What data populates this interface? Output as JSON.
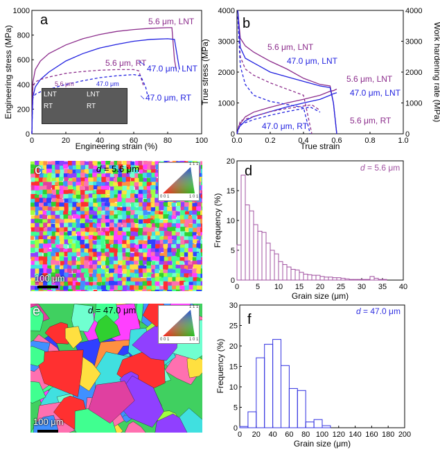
{
  "panels": {
    "a": {
      "letter": "a",
      "xlabel": "Engineering strain (%)",
      "ylabel": "Engineering stress (MPa)",
      "xlim": [
        0,
        100
      ],
      "ylim": [
        0,
        1000
      ],
      "xticks": [
        "0",
        "20",
        "40",
        "60",
        "80",
        "100"
      ],
      "yticks": [
        "0",
        "200",
        "400",
        "600",
        "800",
        "1000"
      ],
      "labels": [
        "5.6 μm, LNT",
        "5.6 μm, RT",
        "47.0 μm, LNT",
        "47.0 μm, RT"
      ],
      "inset": {
        "left": "5.6 μm",
        "right": "47.0 μm",
        "lnt": "LNT",
        "rt": "RT"
      }
    },
    "b": {
      "letter": "b",
      "xlabel": "True strain",
      "ylabel": "True stress (MPa)",
      "ylabel_right": "Work hardening rate (MPa)",
      "xlim": [
        0,
        1.0
      ],
      "ylim": [
        0,
        4000
      ],
      "xticks": [
        "0.0",
        "0.2",
        "0.4",
        "0.6",
        "0.8",
        "1.0"
      ],
      "yticks": [
        "0",
        "1000",
        "2000",
        "3000",
        "4000"
      ],
      "labels": [
        "5.6 μm, LNT",
        "47.0 μm, LNT",
        "5.6 μm, LNT",
        "47.0 μm, LNT",
        "47.0 μm, RT",
        "5.6 μm, RT"
      ]
    },
    "c": {
      "letter": "c",
      "d_label": "d",
      "d_value": " = 5.6 μm",
      "scale": "100 μm",
      "ipf": [
        "1 1 1",
        "0 0 1",
        "1 0 1"
      ]
    },
    "e": {
      "letter": "e",
      "d_label": "d",
      "d_value": " = 47.0 μm",
      "scale": "100 μm",
      "ipf": [
        "1 1 1",
        "0 0 1",
        "1 0 1"
      ]
    },
    "d": {
      "letter": "d",
      "d_label": "d",
      "d_value": " = 5.6 μm",
      "xlabel": "Grain size (μm)",
      "ylabel": "Frequency (%)",
      "xticks": [
        "0",
        "5",
        "10",
        "15",
        "20",
        "25",
        "30",
        "35",
        "40"
      ],
      "yticks": [
        "0",
        "5",
        "10",
        "15",
        "20"
      ]
    },
    "f": {
      "letter": "f",
      "d_label": "d",
      "d_value": " = 47.0 μm",
      "xlabel": "Grain size (μm)",
      "ylabel": "Frequency (%)",
      "xticks": [
        "0",
        "20",
        "40",
        "60",
        "80",
        "100",
        "120",
        "140",
        "160",
        "180",
        "200"
      ],
      "yticks": [
        "0",
        "5",
        "10",
        "15",
        "20",
        "25",
        "30"
      ]
    }
  },
  "colors": {
    "purple": "#8B2B8B",
    "blue": "#2020E0",
    "hist_d": "#A050A0",
    "hist_f": "#3030E0"
  },
  "chart_data": [
    {
      "type": "line",
      "panel": "a",
      "xlim": [
        0,
        100
      ],
      "ylim": [
        0,
        1000
      ],
      "series": [
        {
          "name": "5.6 μm, LNT",
          "style": "solid",
          "color": "#8B2B8B",
          "x": [
            0,
            0.3,
            0.6,
            2,
            5,
            10,
            20,
            30,
            40,
            50,
            60,
            70,
            80,
            82.5,
            84,
            85
          ],
          "y": [
            0,
            250,
            420,
            520,
            590,
            650,
            720,
            770,
            805,
            830,
            845,
            855,
            860,
            860,
            600,
            520
          ]
        },
        {
          "name": "47.0 μm, LNT",
          "style": "solid",
          "color": "#2020E0",
          "x": [
            0,
            0.3,
            0.6,
            2,
            5,
            10,
            20,
            30,
            40,
            50,
            60,
            70,
            80,
            84,
            86,
            87
          ],
          "y": [
            0,
            180,
            300,
            380,
            440,
            500,
            590,
            650,
            695,
            725,
            750,
            765,
            770,
            765,
            600,
            520
          ]
        },
        {
          "name": "5.6 μm, RT",
          "style": "dashed",
          "color": "#8B2B8B",
          "x": [
            0,
            0.3,
            0.6,
            2,
            5,
            10,
            20,
            30,
            40,
            50,
            60,
            63,
            65,
            66
          ],
          "y": [
            0,
            250,
            380,
            420,
            440,
            460,
            490,
            505,
            515,
            520,
            520,
            510,
            420,
            380
          ]
        },
        {
          "name": "47.0 μm, RT",
          "style": "dashed",
          "color": "#2020E0",
          "x": [
            0,
            0.3,
            0.6,
            2,
            5,
            10,
            20,
            30,
            40,
            50,
            60,
            64,
            67,
            68
          ],
          "y": [
            0,
            180,
            290,
            320,
            340,
            360,
            400,
            430,
            455,
            470,
            480,
            470,
            380,
            320
          ]
        }
      ]
    },
    {
      "type": "line",
      "panel": "b",
      "xlim": [
        0,
        1.0
      ],
      "ylim": [
        0,
        4000
      ],
      "series": [
        {
          "name": "5.6 μm, LNT",
          "kind": "stress",
          "style": "solid",
          "color": "#8B2B8B",
          "x": [
            0,
            0.01,
            0.05,
            0.1,
            0.2,
            0.3,
            0.4,
            0.5,
            0.56,
            0.58,
            0.6
          ],
          "y": [
            0,
            250,
            550,
            700,
            860,
            1000,
            1120,
            1250,
            1380,
            1400,
            1450
          ]
        },
        {
          "name": "47.0 μm, LNT",
          "kind": "stress",
          "style": "solid",
          "color": "#2020E0",
          "x": [
            0,
            0.01,
            0.05,
            0.1,
            0.2,
            0.3,
            0.4,
            0.5,
            0.56,
            0.58,
            0.6
          ],
          "y": [
            0,
            200,
            420,
            560,
            720,
            870,
            1000,
            1120,
            1250,
            1300,
            1330
          ]
        },
        {
          "name": "5.6 μm, RT",
          "kind": "stress",
          "style": "dashed",
          "color": "#8B2B8B",
          "x": [
            0,
            0.02,
            0.1,
            0.2,
            0.3,
            0.4,
            0.45,
            0.5
          ],
          "y": [
            0,
            420,
            560,
            720,
            820,
            900,
            940,
            760
          ]
        },
        {
          "name": "47.0 μm, RT",
          "kind": "stress",
          "style": "dashed",
          "color": "#2020E0",
          "x": [
            0,
            0.02,
            0.1,
            0.2,
            0.3,
            0.4,
            0.44,
            0.5
          ],
          "y": [
            0,
            300,
            460,
            600,
            720,
            820,
            870,
            700
          ]
        },
        {
          "name": "5.6 μm, LNT",
          "kind": "whr",
          "style": "solid",
          "color": "#8B2B8B",
          "x": [
            0.005,
            0.02,
            0.05,
            0.1,
            0.15,
            0.2,
            0.3,
            0.4,
            0.5,
            0.56,
            0.58,
            0.6
          ],
          "y": [
            4000,
            3100,
            2850,
            2650,
            2500,
            2350,
            2100,
            1800,
            1600,
            1550,
            1000,
            0
          ]
        },
        {
          "name": "47.0 μm, LNT",
          "kind": "whr",
          "style": "solid",
          "color": "#2020E0",
          "x": [
            0.005,
            0.02,
            0.05,
            0.1,
            0.15,
            0.2,
            0.3,
            0.4,
            0.5,
            0.56,
            0.58,
            0.6
          ],
          "y": [
            4000,
            2800,
            2450,
            2300,
            2150,
            2000,
            1850,
            1700,
            1550,
            1500,
            1000,
            0
          ]
        },
        {
          "name": "5.6 μm, RT",
          "kind": "whr",
          "style": "dashed",
          "color": "#8B2B8B",
          "x": [
            0.005,
            0.02,
            0.05,
            0.1,
            0.2,
            0.3,
            0.4,
            0.45
          ],
          "y": [
            3800,
            2500,
            2100,
            1900,
            1650,
            1450,
            1250,
            0
          ]
        },
        {
          "name": "47.0 μm, RT",
          "kind": "whr",
          "style": "dashed",
          "color": "#2020E0",
          "x": [
            0.005,
            0.02,
            0.05,
            0.1,
            0.2,
            0.3,
            0.4,
            0.44
          ],
          "y": [
            3800,
            2200,
            1600,
            1250,
            1050,
            950,
            850,
            0
          ]
        }
      ]
    },
    {
      "type": "bar",
      "panel": "d",
      "xlim": [
        0,
        40
      ],
      "ylim": [
        0,
        20
      ],
      "bin_width": 1,
      "x": [
        0.5,
        1.5,
        2.5,
        3.5,
        4.5,
        5.5,
        6.5,
        7.5,
        8.5,
        9.5,
        10.5,
        11.5,
        12.5,
        13.5,
        14.5,
        15.5,
        16.5,
        17.5,
        18.5,
        19.5,
        20.5,
        21.5,
        22.5,
        23.5,
        24.5,
        25.5,
        26.5,
        27.5,
        28.5,
        29.5,
        30.5,
        31.5,
        32.5,
        33.5,
        34.5,
        35.5
      ],
      "values": [
        5.9,
        17.6,
        12.6,
        11.6,
        9.3,
        8.2,
        8.0,
        6.2,
        5.0,
        4.4,
        3.1,
        2.6,
        2.2,
        1.8,
        1.7,
        1.3,
        1.0,
        0.9,
        0.8,
        0.8,
        0.6,
        0.5,
        0.5,
        0.4,
        0.4,
        0.3,
        0.2,
        0.1,
        0.1,
        0.1,
        0.1,
        0.1,
        0.6,
        0.3,
        0.1,
        0.1
      ]
    },
    {
      "type": "bar",
      "panel": "f",
      "xlim": [
        0,
        200
      ],
      "ylim": [
        0,
        30
      ],
      "bin_width": 10,
      "x": [
        5,
        15,
        25,
        35,
        45,
        55,
        65,
        75,
        85,
        95,
        105
      ],
      "values": [
        0.3,
        3.9,
        17.1,
        20.4,
        21.6,
        15.2,
        9.6,
        9.1,
        1.4,
        2.0,
        0.5
      ]
    }
  ]
}
